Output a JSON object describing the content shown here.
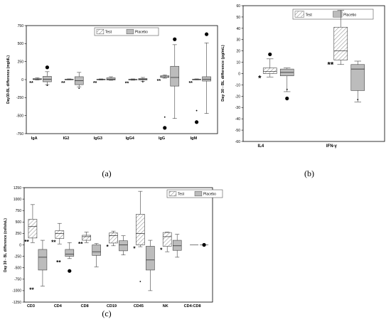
{
  "chart_data": [
    {
      "type": "box",
      "panel_caption": "(a)",
      "ylabel": "Day30-BL difference (mg/dL)",
      "ylim": [
        -750,
        750
      ],
      "yticks": [
        -750,
        -500,
        -250,
        0,
        250,
        500,
        750
      ],
      "categories": [
        "IgA",
        "IG2",
        "IgG3",
        "IgG4",
        "IgG",
        "IgM"
      ],
      "legend": [
        "Test",
        "Placebo"
      ],
      "legend_position": "top-right",
      "significance": [
        "**",
        "**",
        "**",
        "**",
        "**",
        "**"
      ],
      "series": [
        {
          "name": "Test",
          "boxes": [
            {
              "wlo": -5,
              "q1": 0,
              "med": 5,
              "q3": 15,
              "whi": 25
            },
            {
              "wlo": -3,
              "q1": 0,
              "med": 2,
              "q3": 5,
              "whi": 10
            },
            {
              "wlo": -5,
              "q1": -2,
              "med": 2,
              "q3": 5,
              "whi": 10
            },
            {
              "wlo": -8,
              "q1": -4,
              "med": 0,
              "q3": 5,
              "whi": 10
            },
            {
              "wlo": 20,
              "q1": 30,
              "med": 40,
              "q3": 55,
              "whi": 65
            },
            {
              "wlo": -3,
              "q1": 0,
              "med": 2,
              "q3": 5,
              "whi": 10
            }
          ],
          "points": [
            [
              5,
              -520,
              "s"
            ],
            [
              5,
              -670,
              "l"
            ],
            [
              6,
              -430,
              "s"
            ],
            [
              6,
              -590,
              "l"
            ]
          ]
        },
        {
          "name": "Placebo",
          "boxes": [
            {
              "wlo": -70,
              "q1": -30,
              "med": 5,
              "q3": 45,
              "whi": 110
            },
            {
              "wlo": -100,
              "q1": -70,
              "med": -15,
              "q3": 40,
              "whi": 100
            },
            {
              "wlo": -10,
              "q1": -5,
              "med": 5,
              "q3": 25,
              "whi": 40
            },
            {
              "wlo": -25,
              "q1": -5,
              "med": 5,
              "q3": 15,
              "whi": 30
            },
            {
              "wlo": -540,
              "q1": -90,
              "med": 30,
              "q3": 185,
              "whi": 485
            },
            {
              "wlo": -470,
              "q1": -20,
              "med": 5,
              "q3": 40,
              "whi": 510
            }
          ],
          "points": [
            [
              1,
              170,
              "l"
            ],
            [
              1,
              -80,
              "s"
            ],
            [
              2,
              -120,
              "s"
            ],
            [
              4,
              -30,
              "s"
            ],
            [
              5,
              560,
              "l"
            ],
            [
              6,
              630,
              "l"
            ]
          ]
        }
      ]
    },
    {
      "type": "box",
      "panel_caption": "(b)",
      "ylabel": "Day 30 - BL difference (pg/mL)",
      "ylim": [
        -60,
        60
      ],
      "yticks": [
        -60,
        -50,
        -40,
        -30,
        -20,
        -10,
        0,
        10,
        20,
        30,
        40,
        50,
        60
      ],
      "categories": [
        "IL4",
        "IFN-γ"
      ],
      "legend": [
        "Test",
        "Placebo"
      ],
      "legend_position": "top-right",
      "significance": [
        "*",
        "**"
      ],
      "series": [
        {
          "name": "Test",
          "boxes": [
            {
              "wlo": -3,
              "q1": 0,
              "med": 2,
              "q3": 5,
              "whi": 13
            },
            {
              "wlo": 8,
              "q1": 12,
              "med": 20,
              "q3": 41,
              "whi": 56
            }
          ],
          "points": [
            [
              1,
              17,
              "l"
            ]
          ]
        },
        {
          "name": "Placebo",
          "boxes": [
            {
              "wlo": -16,
              "q1": -2,
              "med": 1,
              "q3": 4,
              "whi": 5
            },
            {
              "wlo": -25,
              "q1": -15,
              "med": 4,
              "q3": 8,
              "whi": 11
            }
          ],
          "points": [
            [
              1,
              -14,
              "s"
            ],
            [
              1,
              -22,
              "l"
            ],
            [
              2,
              -23,
              "s"
            ]
          ]
        }
      ]
    },
    {
      "type": "box",
      "panel_caption": "(c)",
      "ylabel": "Day 30 - BL difference (cells/uL)",
      "ylim": [
        -1250,
        1250
      ],
      "yticks": [
        -1250,
        -1000,
        -750,
        -500,
        -250,
        0,
        250,
        500,
        750,
        1000,
        1250
      ],
      "categories": [
        "CD3",
        "CD4",
        "CD8",
        "CD19",
        "CD45",
        "NK",
        "CD4:CD8"
      ],
      "legend": [
        "Test",
        "Placebo"
      ],
      "legend_position": "top-right",
      "significance_test": [
        "**",
        "**",
        "**",
        "*",
        "*",
        "*",
        ""
      ],
      "significance_placebo": [
        "**",
        "**",
        "",
        "",
        "",
        "",
        ""
      ],
      "series": [
        {
          "name": "Test",
          "boxes": [
            {
              "wlo": 50,
              "q1": 150,
              "med": 400,
              "q3": 560,
              "whi": 880
            },
            {
              "wlo": 20,
              "q1": 140,
              "med": 250,
              "q3": 310,
              "whi": 470
            },
            {
              "wlo": 50,
              "q1": 100,
              "med": 180,
              "q3": 210,
              "whi": 280
            },
            {
              "wlo": -20,
              "q1": 40,
              "med": 200,
              "q3": 260,
              "whi": 300
            },
            {
              "wlo": -40,
              "q1": 0,
              "med": 250,
              "q3": 670,
              "whi": 1170
            },
            {
              "wlo": -150,
              "q1": -30,
              "med": 180,
              "q3": 270,
              "whi": 280
            },
            {
              "wlo": 0,
              "q1": 0,
              "med": 0,
              "q3": 0,
              "whi": 0
            }
          ],
          "points": [
            [
              5,
              -800,
              "s"
            ]
          ]
        },
        {
          "name": "Placebo",
          "boxes": [
            {
              "wlo": -900,
              "q1": -550,
              "med": -270,
              "q3": -100,
              "whi": 100
            },
            {
              "wlo": -300,
              "q1": -250,
              "med": -200,
              "q3": -100,
              "whi": 50
            },
            {
              "wlo": -480,
              "q1": -230,
              "med": -150,
              "q3": 0,
              "whi": 30
            },
            {
              "wlo": -220,
              "q1": -130,
              "med": 0,
              "q3": 90,
              "whi": 200
            },
            {
              "wlo": -1000,
              "q1": -550,
              "med": -330,
              "q3": -30,
              "whi": 100
            },
            {
              "wlo": -270,
              "q1": -120,
              "med": -20,
              "q3": 100,
              "whi": 230
            },
            {
              "wlo": 0,
              "q1": 0,
              "med": 0,
              "q3": 0,
              "whi": 0
            }
          ],
          "points": [
            [
              2,
              -570,
              "l"
            ],
            [
              7,
              0,
              "l"
            ]
          ]
        }
      ]
    }
  ]
}
